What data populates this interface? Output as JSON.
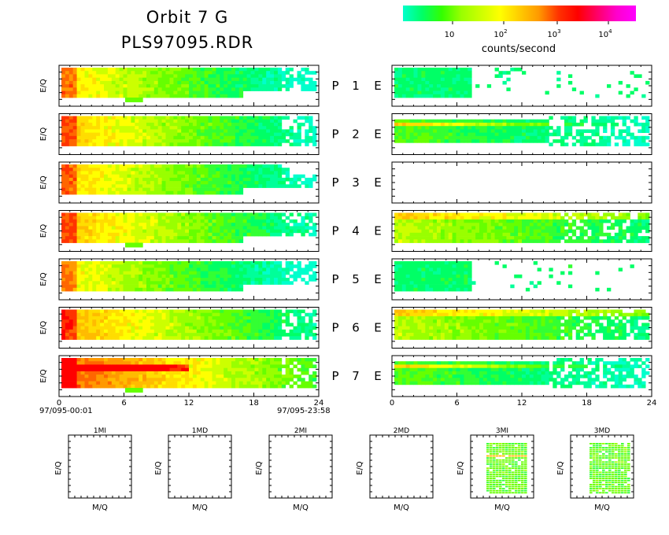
{
  "header": {
    "title_line1": "Orbit 7 G",
    "title_line2": "PLS97095.RDR"
  },
  "colorbar": {
    "label": "counts/second",
    "ticks": [
      {
        "base": "10",
        "exp": ""
      },
      {
        "base": "10",
        "exp": "2"
      },
      {
        "base": "10",
        "exp": "3"
      },
      {
        "base": "10",
        "exp": "4"
      }
    ],
    "colors": [
      "#00ffcc",
      "#00ff66",
      "#33ff00",
      "#99ff00",
      "#ccff00",
      "#ffff00",
      "#ffcc00",
      "#ff9900",
      "#ff3300",
      "#ff0000",
      "#ff0066",
      "#ff00cc",
      "#ff00ff"
    ]
  },
  "labels": {
    "ylabel": "E/Q",
    "mq_label": "M/Q",
    "e_letter": "E",
    "p_letter": "P",
    "start_time": "97/095-00:01",
    "end_time": "97/095-23:58"
  },
  "chart_data": {
    "type": "heatmap",
    "x_ticks": [
      "0",
      "6",
      "12",
      "18",
      "24"
    ],
    "xlim": [
      0,
      24
    ],
    "channels": [
      {
        "id": "1",
        "ion_intensity": 0.35,
        "electron": "sparse"
      },
      {
        "id": "2",
        "ion_intensity": 0.4,
        "electron": "band"
      },
      {
        "id": "3",
        "ion_intensity": 0.38,
        "electron": "empty"
      },
      {
        "id": "4",
        "ion_intensity": 0.42,
        "electron": "strong"
      },
      {
        "id": "5",
        "ion_intensity": 0.32,
        "electron": "sparse"
      },
      {
        "id": "6",
        "ion_intensity": 0.45,
        "electron": "strong"
      },
      {
        "id": "7",
        "ion_intensity": 0.6,
        "electron": "band"
      }
    ],
    "mass_panels": [
      {
        "title": "1MI",
        "content": "empty"
      },
      {
        "title": "1MD",
        "content": "empty"
      },
      {
        "title": "2MI",
        "content": "empty"
      },
      {
        "title": "2MD",
        "content": "empty"
      },
      {
        "title": "3MI",
        "content": "filled"
      },
      {
        "title": "3MD",
        "content": "filled"
      }
    ]
  }
}
